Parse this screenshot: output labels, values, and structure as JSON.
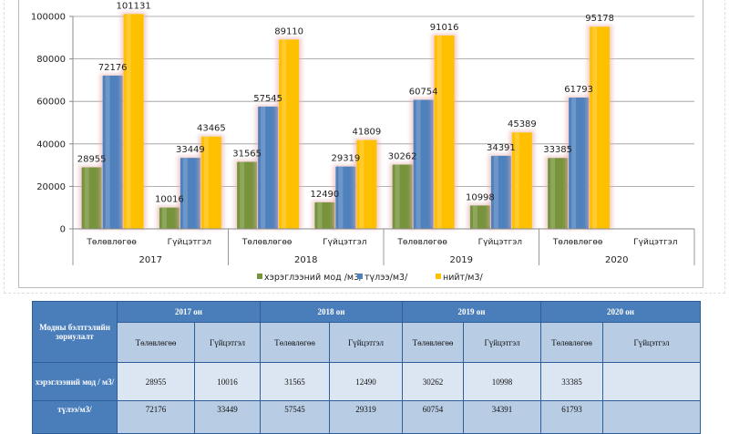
{
  "chart_data": {
    "type": "bar",
    "categories": [
      [
        "Төлөвлөгөө",
        "2017"
      ],
      [
        "Гүйцэтгэл",
        "2017"
      ],
      [
        "Төлөвлөгөө",
        "2018"
      ],
      [
        "Гүйцэтгэл",
        "2018"
      ],
      [
        "Төлөвлөгөө",
        "2019"
      ],
      [
        "Гүйцэтгэл",
        "2019"
      ],
      [
        "Төлөвлөгөө",
        "2020"
      ],
      [
        "Гүйцэтгэл",
        "2020"
      ]
    ],
    "years": [
      "2017",
      "2018",
      "2019",
      "2020"
    ],
    "subcategories": [
      "Төлөвлөгөө",
      "Гүйцэтгэл"
    ],
    "series": [
      {
        "name": "хэрэглээний мод /м3/",
        "color": "#77933c",
        "values": [
          28955,
          10016,
          31565,
          12490,
          30262,
          10998,
          33385,
          null
        ]
      },
      {
        "name": "түлээ/м3/",
        "color": "#4f81bd",
        "values": [
          72176,
          33449,
          57545,
          29319,
          60754,
          34391,
          61793,
          null
        ]
      },
      {
        "name": "нийт/м3/",
        "color": "#ffc000",
        "values": [
          101131,
          43465,
          89110,
          41809,
          91016,
          45389,
          95178,
          null
        ]
      }
    ],
    "ylim": [
      0,
      100000
    ],
    "yticks": [
      0,
      20000,
      40000,
      60000,
      80000,
      100000
    ],
    "grid": true,
    "legend": "bottom"
  },
  "table": {
    "corner": "Модны бэлтгэлийн зориулалт",
    "years": [
      "2017 он",
      "2018 он",
      "2019 он",
      "2020 он"
    ],
    "sub": [
      "Төлөвлөгөө",
      "Гүйцэтгэл",
      "Төлөвлөгөө",
      "Гүйцэтгэл",
      "Төлөвлөгөө",
      "Гүйцэтгэл",
      "Төлөвлөгөө",
      "Гүйцэтгэл"
    ],
    "rows": [
      {
        "label": "хэрэглээний мод / м3/",
        "cells": [
          "28955",
          "10016",
          "31565",
          "12490",
          "30262",
          "10998",
          "33385",
          ""
        ]
      },
      {
        "label": "түлээ/м3/",
        "cells": [
          "72176",
          "33449",
          "57545",
          "29319",
          "60754",
          "34391",
          "61793",
          ""
        ]
      }
    ]
  }
}
